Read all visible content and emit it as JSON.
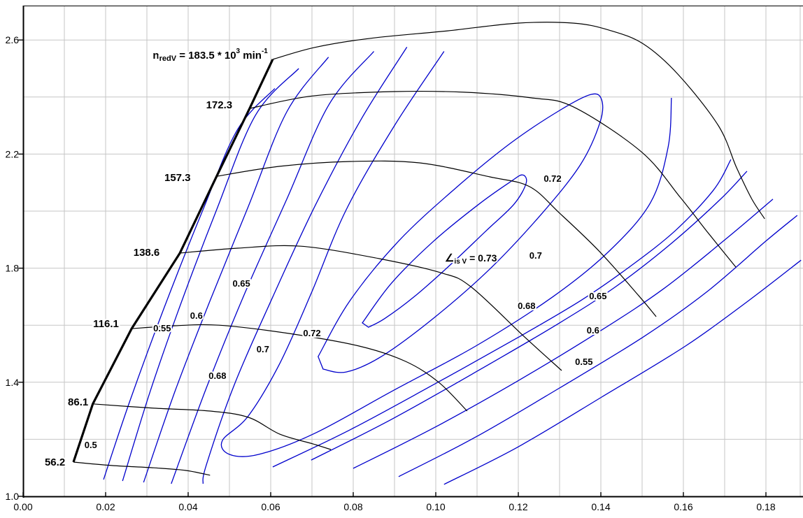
{
  "chart_data": {
    "type": "line",
    "subtype": "compressor-map-contour",
    "title": "",
    "background": "#ffffff",
    "colors": {
      "speed_line": "#000000",
      "surge_line": "#000000",
      "contour": "#0000cc",
      "grid": "#c6c6c6",
      "axis": "#000000",
      "text": "#000000"
    },
    "x_axis": {
      "min": 0.0,
      "max": 0.1888,
      "major_tick_step": 0.02,
      "minor_grid_step": 0.01,
      "tick_labels": [
        "0.00",
        "0.02",
        "0.04",
        "0.06",
        "0.08",
        "0.10",
        "0.12",
        "0.14",
        "0.16",
        "0.18"
      ],
      "tick_values": [
        0.0,
        0.02,
        0.04,
        0.06,
        0.08,
        0.1,
        0.12,
        0.14,
        0.16,
        0.18
      ]
    },
    "y_axis": {
      "min": 1.0,
      "max": 2.72,
      "major_tick_step": 0.4,
      "minor_grid_step": 0.2,
      "tick_labels": [
        "1.0",
        "1.4",
        "1.8",
        "2.2",
        "2.6"
      ],
      "tick_values": [
        1.0,
        1.4,
        1.8,
        2.2,
        2.6
      ]
    },
    "speed_annotation": {
      "base": "n",
      "sub": "redV",
      "mid": " = 183.5 * 10",
      "sup": "3",
      "unit": " min",
      "sup2": "-1",
      "anchor": [
        0.0593,
        2.546
      ]
    },
    "efficiency_annotation": {
      "symbol": "∠",
      "sub": "is V",
      "rest": " = 0.73",
      "anchor": [
        0.1022,
        1.836
      ]
    },
    "surge_line": {
      "points": [
        [
          0.0122,
          1.12
        ],
        [
          0.0169,
          1.324
        ],
        [
          0.0263,
          1.588
        ],
        [
          0.038,
          1.853
        ],
        [
          0.0469,
          2.122
        ],
        [
          0.0549,
          2.36
        ],
        [
          0.0605,
          2.532
        ]
      ]
    },
    "speed_lines": [
      {
        "label": "56.2",
        "label_pos": [
          0.0102,
          1.12
        ],
        "points": [
          [
            0.0122,
            1.12
          ],
          [
            0.0215,
            1.108
          ],
          [
            0.0317,
            1.1
          ],
          [
            0.0393,
            1.091
          ],
          [
            0.0453,
            1.074
          ]
        ]
      },
      {
        "label": "86.1",
        "label_pos": [
          0.0158,
          1.331
        ],
        "points": [
          [
            0.0169,
            1.324
          ],
          [
            0.0317,
            1.309
          ],
          [
            0.0453,
            1.299
          ],
          [
            0.0546,
            1.277
          ],
          [
            0.0622,
            1.218
          ],
          [
            0.0702,
            1.184
          ],
          [
            0.0746,
            1.164
          ]
        ]
      },
      {
        "label": "116.1",
        "label_pos": [
          0.0232,
          1.605
        ],
        "points": [
          [
            0.0263,
            1.588
          ],
          [
            0.0368,
            1.598
          ],
          [
            0.0475,
            1.6
          ],
          [
            0.0644,
            1.571
          ],
          [
            0.0814,
            1.527
          ],
          [
            0.0927,
            1.473
          ],
          [
            0.1007,
            1.4
          ],
          [
            0.1076,
            1.299
          ]
        ]
      },
      {
        "label": "138.6",
        "label_pos": [
          0.0331,
          1.855
        ],
        "points": [
          [
            0.038,
            1.853
          ],
          [
            0.052,
            1.87
          ],
          [
            0.0673,
            1.877
          ],
          [
            0.0864,
            1.833
          ],
          [
            0.1012,
            1.784
          ],
          [
            0.1085,
            1.735
          ],
          [
            0.1215,
            1.559
          ],
          [
            0.1305,
            1.441
          ]
        ]
      },
      {
        "label": "157.3",
        "label_pos": [
          0.0406,
          2.118
        ],
        "points": [
          [
            0.0469,
            2.122
          ],
          [
            0.0622,
            2.157
          ],
          [
            0.0792,
            2.174
          ],
          [
            0.0961,
            2.169
          ],
          [
            0.1131,
            2.12
          ],
          [
            0.1227,
            2.086
          ],
          [
            0.13,
            1.993
          ],
          [
            0.1397,
            1.858
          ],
          [
            0.1492,
            1.703
          ],
          [
            0.1534,
            1.63
          ]
        ]
      },
      {
        "label": "172.3",
        "label_pos": [
          0.0507,
          2.373
        ],
        "points": [
          [
            0.0549,
            2.36
          ],
          [
            0.0702,
            2.404
          ],
          [
            0.0898,
            2.419
          ],
          [
            0.1068,
            2.417
          ],
          [
            0.1232,
            2.397
          ],
          [
            0.1334,
            2.365
          ],
          [
            0.1498,
            2.208
          ],
          [
            0.1593,
            2.047
          ],
          [
            0.1656,
            1.931
          ],
          [
            0.1727,
            1.804
          ]
        ]
      },
      {
        "label": "183.5",
        "label_pos": null,
        "points": [
          [
            0.0605,
            2.532
          ],
          [
            0.0707,
            2.574
          ],
          [
            0.0842,
            2.606
          ],
          [
            0.1029,
            2.632
          ],
          [
            0.1198,
            2.659
          ],
          [
            0.1334,
            2.659
          ],
          [
            0.1419,
            2.635
          ],
          [
            0.1503,
            2.586
          ],
          [
            0.1588,
            2.478
          ],
          [
            0.1685,
            2.299
          ],
          [
            0.1729,
            2.152
          ],
          [
            0.1766,
            2.042
          ],
          [
            0.1797,
            1.973
          ]
        ]
      }
    ],
    "efficiency_contours": [
      {
        "level": 0.5,
        "branch": "left",
        "closed": false,
        "points": [
          [
            0.0195,
            1.059
          ],
          [
            0.0258,
            1.331
          ],
          [
            0.0342,
            1.662
          ],
          [
            0.0436,
            2.005
          ],
          [
            0.052,
            2.287
          ],
          [
            0.061,
            2.43
          ]
        ]
      },
      {
        "level": 0.5,
        "branch": "right",
        "closed": false,
        "points": [
          [
            0.102,
            1.042
          ],
          [
            0.1198,
            1.172
          ],
          [
            0.1402,
            1.348
          ],
          [
            0.1605,
            1.527
          ],
          [
            0.1758,
            1.686
          ],
          [
            0.1885,
            1.828
          ]
        ]
      },
      {
        "level": 0.55,
        "branch": "left",
        "closed": false,
        "points": [
          [
            0.0241,
            1.054
          ],
          [
            0.0308,
            1.368
          ],
          [
            0.0385,
            1.686
          ],
          [
            0.0469,
            2.005
          ],
          [
            0.0563,
            2.336
          ],
          [
            0.0668,
            2.5
          ]
        ]
      },
      {
        "level": 0.55,
        "branch": "right",
        "closed": false,
        "points": [
          [
            0.091,
            1.069
          ],
          [
            0.1097,
            1.208
          ],
          [
            0.13,
            1.38
          ],
          [
            0.1503,
            1.559
          ],
          [
            0.1656,
            1.716
          ],
          [
            0.18,
            1.895
          ],
          [
            0.1876,
            1.985
          ]
        ]
      },
      {
        "level": 0.6,
        "branch": "left",
        "closed": false,
        "points": [
          [
            0.0292,
            1.049
          ],
          [
            0.0368,
            1.368
          ],
          [
            0.0453,
            1.686
          ],
          [
            0.0546,
            2.017
          ],
          [
            0.0639,
            2.348
          ],
          [
            0.074,
            2.54
          ]
        ]
      },
      {
        "level": 0.6,
        "branch": "right",
        "closed": false,
        "points": [
          [
            0.08,
            1.098
          ],
          [
            0.0995,
            1.24
          ],
          [
            0.1198,
            1.404
          ],
          [
            0.1402,
            1.583
          ],
          [
            0.1554,
            1.73
          ],
          [
            0.1707,
            1.907
          ],
          [
            0.1817,
            2.042
          ]
        ]
      },
      {
        "level": 0.65,
        "branch": "left",
        "closed": false,
        "points": [
          [
            0.0359,
            1.044
          ],
          [
            0.0444,
            1.38
          ],
          [
            0.0537,
            1.711
          ],
          [
            0.0639,
            2.042
          ],
          [
            0.0741,
            2.373
          ],
          [
            0.085,
            2.56
          ]
        ]
      },
      {
        "level": 0.65,
        "branch": "right",
        "closed": false,
        "points": [
          [
            0.0698,
            1.127
          ],
          [
            0.0893,
            1.27
          ],
          [
            0.1097,
            1.436
          ],
          [
            0.13,
            1.608
          ],
          [
            0.1436,
            1.735
          ],
          [
            0.1571,
            1.887
          ],
          [
            0.169,
            2.042
          ],
          [
            0.1754,
            2.14
          ]
        ]
      },
      {
        "level": 0.68,
        "branch": "left",
        "closed": false,
        "points": [
          [
            0.093,
            2.575
          ],
          [
            0.082,
            2.324
          ],
          [
            0.0707,
            2.017
          ],
          [
            0.0605,
            1.699
          ],
          [
            0.0512,
            1.392
          ],
          [
            0.0444,
            1.11
          ],
          [
            0.0436,
            1.044
          ]
        ]
      },
      {
        "level": 0.68,
        "branch": "right",
        "closed": false,
        "points": [
          [
            0.0605,
            1.103
          ],
          [
            0.0792,
            1.233
          ],
          [
            0.0995,
            1.392
          ],
          [
            0.1198,
            1.556
          ],
          [
            0.1351,
            1.686
          ],
          [
            0.1469,
            1.804
          ],
          [
            0.158,
            1.931
          ],
          [
            0.1673,
            2.074
          ],
          [
            0.1715,
            2.181
          ]
        ]
      },
      {
        "level": 0.7,
        "branch": "banana",
        "closed": false,
        "points": [
          [
            0.102,
            2.56
          ],
          [
            0.09,
            2.3
          ],
          [
            0.0783,
            2.005
          ],
          [
            0.0698,
            1.711
          ],
          [
            0.0622,
            1.466
          ],
          [
            0.0546,
            1.282
          ],
          [
            0.0483,
            1.196
          ],
          [
            0.05,
            1.147
          ],
          [
            0.0571,
            1.147
          ],
          [
            0.0707,
            1.221
          ],
          [
            0.0893,
            1.368
          ],
          [
            0.1097,
            1.527
          ],
          [
            0.1283,
            1.699
          ],
          [
            0.1419,
            1.858
          ],
          [
            0.152,
            2.029
          ],
          [
            0.1563,
            2.225
          ],
          [
            0.1571,
            2.397
          ]
        ]
      },
      {
        "level": 0.72,
        "branch": "island",
        "closed": true,
        "points": [
          [
            0.0715,
            1.49
          ],
          [
            0.0792,
            1.686
          ],
          [
            0.091,
            1.895
          ],
          [
            0.1046,
            2.078
          ],
          [
            0.1181,
            2.238
          ],
          [
            0.13,
            2.353
          ],
          [
            0.1376,
            2.409
          ],
          [
            0.1402,
            2.39
          ],
          [
            0.1398,
            2.311
          ],
          [
            0.1351,
            2.164
          ],
          [
            0.1258,
            1.993
          ],
          [
            0.1131,
            1.797
          ],
          [
            0.0995,
            1.625
          ],
          [
            0.0868,
            1.49
          ],
          [
            0.0783,
            1.436
          ],
          [
            0.0727,
            1.446
          ]
        ]
      },
      {
        "level": 0.73,
        "branch": "island",
        "closed": true,
        "points": [
          [
            0.0822,
            1.608
          ],
          [
            0.0893,
            1.748
          ],
          [
            0.0995,
            1.895
          ],
          [
            0.1105,
            2.025
          ],
          [
            0.1181,
            2.103
          ],
          [
            0.121,
            2.127
          ],
          [
            0.1219,
            2.098
          ],
          [
            0.119,
            2.025
          ],
          [
            0.1122,
            1.931
          ],
          [
            0.1037,
            1.814
          ],
          [
            0.0947,
            1.699
          ],
          [
            0.0876,
            1.623
          ],
          [
            0.0837,
            1.593
          ]
        ]
      }
    ],
    "contour_labels": [
      {
        "text": "0.5",
        "pos": [
          0.0164,
          1.179
        ]
      },
      {
        "text": "0.55",
        "pos": [
          0.0337,
          1.588
        ]
      },
      {
        "text": "0.6",
        "pos": [
          0.042,
          1.632
        ]
      },
      {
        "text": "0.65",
        "pos": [
          0.0529,
          1.745
        ]
      },
      {
        "text": "0.68",
        "pos": [
          0.0471,
          1.422
        ]
      },
      {
        "text": "0.7",
        "pos": [
          0.0581,
          1.515
        ]
      },
      {
        "text": "0.72",
        "pos": [
          0.07,
          1.571
        ]
      },
      {
        "text": "0.72",
        "pos": [
          0.1283,
          2.113
        ]
      },
      {
        "text": "0.7",
        "pos": [
          0.1242,
          1.843
        ]
      },
      {
        "text": "0.68",
        "pos": [
          0.122,
          1.667
        ]
      },
      {
        "text": "0.65",
        "pos": [
          0.1393,
          1.701
        ]
      },
      {
        "text": "0.6",
        "pos": [
          0.1381,
          1.581
        ]
      },
      {
        "text": "0.55",
        "pos": [
          0.1359,
          1.471
        ]
      }
    ]
  }
}
